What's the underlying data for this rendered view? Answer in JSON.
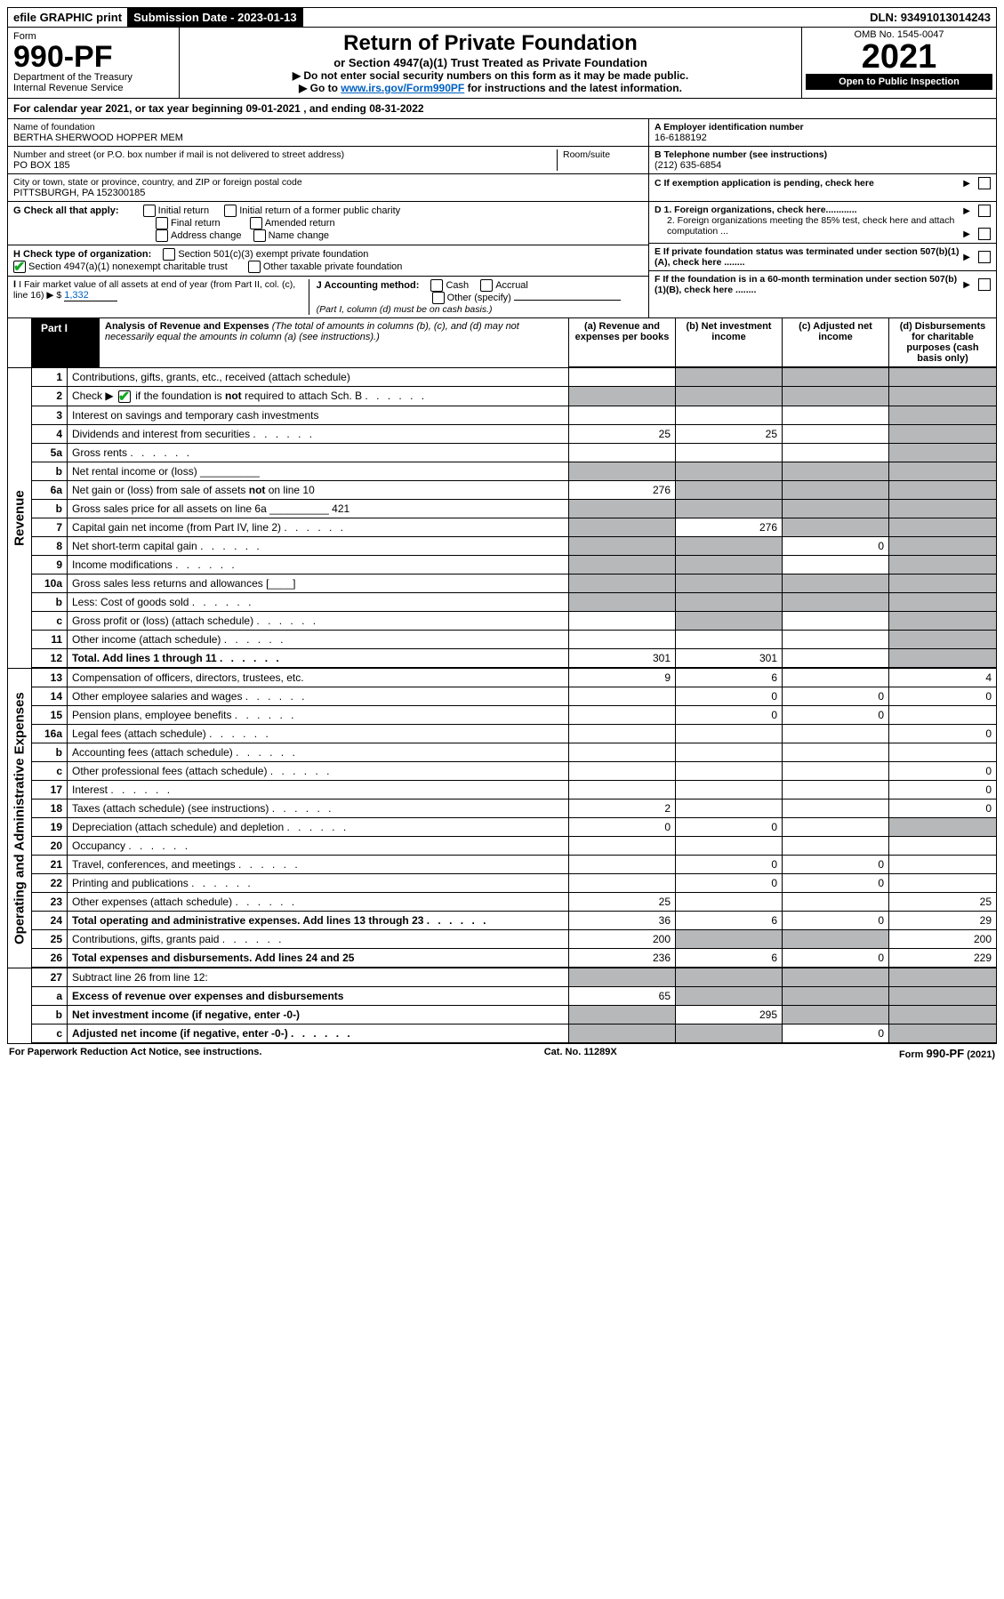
{
  "topbar": {
    "efile": "efile GRAPHIC print",
    "submission_label": "Submission Date - 2023-01-13",
    "dln": "DLN: 93491013014243"
  },
  "header": {
    "form_word": "Form",
    "form_no": "990-PF",
    "dept": "Department of the Treasury",
    "irs": "Internal Revenue Service",
    "title": "Return of Private Foundation",
    "subtitle": "or Section 4947(a)(1) Trust Treated as Private Foundation",
    "instr1": "▶ Do not enter social security numbers on this form as it may be made public.",
    "instr2_pre": "▶ Go to ",
    "instr2_link": "www.irs.gov/Form990PF",
    "instr2_post": " for instructions and the latest information.",
    "omb": "OMB No. 1545-0047",
    "year": "2021",
    "open_public": "Open to Public Inspection"
  },
  "period_line": {
    "pre": "For calendar year 2021, or tax year beginning ",
    "begin": "09-01-2021",
    "mid": " , and ending ",
    "end": "08-31-2022"
  },
  "foundation": {
    "name_label": "Name of foundation",
    "name": "BERTHA SHERWOOD HOPPER MEM",
    "addr_label": "Number and street (or P.O. box number if mail is not delivered to street address)",
    "addr": "PO BOX 185",
    "room_label": "Room/suite",
    "city_label": "City or town, state or province, country, and ZIP or foreign postal code",
    "city": "PITTSBURGH, PA  152300185"
  },
  "right_meta": {
    "a_label": "A Employer identification number",
    "a_value": "16-6188192",
    "b_label": "B Telephone number (see instructions)",
    "b_value": "(212) 635-6854",
    "c_label": "C If exemption application is pending, check here",
    "d1_label": "D 1. Foreign organizations, check here............",
    "d2_label": "2. Foreign organizations meeting the 85% test, check here and attach computation ...",
    "e_label": "E  If private foundation status was terminated under section 507(b)(1)(A), check here ........",
    "f_label": "F  If the foundation is in a 60-month termination under section 507(b)(1)(B), check here ........"
  },
  "g": {
    "label": "G Check all that apply:",
    "opts": [
      "Initial return",
      "Initial return of a former public charity",
      "Final return",
      "Amended return",
      "Address change",
      "Name change"
    ]
  },
  "h": {
    "label": "H Check type of organization:",
    "opt1": "Section 501(c)(3) exempt private foundation",
    "opt2": "Section 4947(a)(1) nonexempt charitable trust",
    "opt3": "Other taxable private foundation"
  },
  "i": {
    "label": "I Fair market value of all assets at end of year (from Part II, col. (c), line 16) ▶ $",
    "value": "1,332"
  },
  "j": {
    "label": "J Accounting method:",
    "opts": [
      "Cash",
      "Accrual",
      "Other (specify)"
    ],
    "note": "(Part I, column (d) must be on cash basis.)"
  },
  "part1": {
    "label": "Part I",
    "title": "Analysis of Revenue and Expenses",
    "paren": " (The total of amounts in columns (b), (c), and (d) may not necessarily equal the amounts in column (a) (see instructions).)",
    "col_a": "(a)  Revenue and expenses per books",
    "col_b": "(b)  Net investment income",
    "col_c": "(c)  Adjusted net income",
    "col_d": "(d)  Disbursements for charitable purposes (cash basis only)"
  },
  "side_labels": {
    "revenue": "Revenue",
    "opex": "Operating and Administrative Expenses"
  },
  "lines": [
    {
      "no": "1",
      "desc": "Contributions, gifts, grants, etc., received (attach schedule)",
      "a": "",
      "b": "gray",
      "c": "gray",
      "d": "gray"
    },
    {
      "no": "2",
      "desc": "Check ▶ ✔ if the foundation is not required to attach Sch. B",
      "dots": true,
      "a": "gray",
      "b": "gray",
      "c": "gray",
      "d": "gray"
    },
    {
      "no": "3",
      "desc": "Interest on savings and temporary cash investments",
      "a": "",
      "b": "",
      "c": "",
      "d": "gray"
    },
    {
      "no": "4",
      "desc": "Dividends and interest from securities",
      "dots": true,
      "a": "25",
      "b": "25",
      "c": "",
      "d": "gray"
    },
    {
      "no": "5a",
      "desc": "Gross rents",
      "dots": true,
      "a": "",
      "b": "",
      "c": "",
      "d": "gray"
    },
    {
      "no": "b",
      "desc": "Net rental income or (loss) __________",
      "a": "gray",
      "b": "gray",
      "c": "gray",
      "d": "gray"
    },
    {
      "no": "6a",
      "desc": "Net gain or (loss) from sale of assets not on line 10",
      "a": "276",
      "b": "gray",
      "c": "gray",
      "d": "gray"
    },
    {
      "no": "b",
      "desc": "Gross sales price for all assets on line 6a __________ 421",
      "a": "gray",
      "b": "gray",
      "c": "gray",
      "d": "gray"
    },
    {
      "no": "7",
      "desc": "Capital gain net income (from Part IV, line 2)",
      "dots": true,
      "a": "gray",
      "b": "276",
      "c": "gray",
      "d": "gray"
    },
    {
      "no": "8",
      "desc": "Net short-term capital gain",
      "dots": true,
      "a": "gray",
      "b": "gray",
      "c": "0",
      "d": "gray"
    },
    {
      "no": "9",
      "desc": "Income modifications",
      "dots": true,
      "a": "gray",
      "b": "gray",
      "c": "",
      "d": "gray"
    },
    {
      "no": "10a",
      "desc": "Gross sales less returns and allowances  [____]",
      "a": "gray",
      "b": "gray",
      "c": "gray",
      "d": "gray"
    },
    {
      "no": "b",
      "desc": "Less: Cost of goods sold",
      "dots": true,
      "endbox": true,
      "a": "gray",
      "b": "gray",
      "c": "gray",
      "d": "gray"
    },
    {
      "no": "c",
      "desc": "Gross profit or (loss) (attach schedule)",
      "dots": true,
      "a": "",
      "b": "gray",
      "c": "",
      "d": "gray"
    },
    {
      "no": "11",
      "desc": "Other income (attach schedule)",
      "dots": true,
      "a": "",
      "b": "",
      "c": "",
      "d": "gray"
    },
    {
      "no": "12",
      "desc": "Total. Add lines 1 through 11",
      "dots": true,
      "bold": true,
      "a": "301",
      "b": "301",
      "c": "",
      "d": "gray"
    },
    {
      "no": "13",
      "desc": "Compensation of officers, directors, trustees, etc.",
      "a": "9",
      "b": "6",
      "c": "",
      "d": "4"
    },
    {
      "no": "14",
      "desc": "Other employee salaries and wages",
      "dots": true,
      "a": "",
      "b": "0",
      "c": "0",
      "d": "0"
    },
    {
      "no": "15",
      "desc": "Pension plans, employee benefits",
      "dots": true,
      "a": "",
      "b": "0",
      "c": "0",
      "d": ""
    },
    {
      "no": "16a",
      "desc": "Legal fees (attach schedule)",
      "dots": true,
      "a": "",
      "b": "",
      "c": "",
      "d": "0"
    },
    {
      "no": "b",
      "desc": "Accounting fees (attach schedule)",
      "dots": true,
      "a": "",
      "b": "",
      "c": "",
      "d": ""
    },
    {
      "no": "c",
      "desc": "Other professional fees (attach schedule)",
      "dots": true,
      "a": "",
      "b": "",
      "c": "",
      "d": "0"
    },
    {
      "no": "17",
      "desc": "Interest",
      "dots": true,
      "a": "",
      "b": "",
      "c": "",
      "d": "0"
    },
    {
      "no": "18",
      "desc": "Taxes (attach schedule) (see instructions)",
      "dots": true,
      "a": "2",
      "b": "",
      "c": "",
      "d": "0"
    },
    {
      "no": "19",
      "desc": "Depreciation (attach schedule) and depletion",
      "dots": true,
      "a": "0",
      "b": "0",
      "c": "",
      "d": "gray"
    },
    {
      "no": "20",
      "desc": "Occupancy",
      "dots": true,
      "a": "",
      "b": "",
      "c": "",
      "d": ""
    },
    {
      "no": "21",
      "desc": "Travel, conferences, and meetings",
      "dots": true,
      "a": "",
      "b": "0",
      "c": "0",
      "d": ""
    },
    {
      "no": "22",
      "desc": "Printing and publications",
      "dots": true,
      "a": "",
      "b": "0",
      "c": "0",
      "d": ""
    },
    {
      "no": "23",
      "desc": "Other expenses (attach schedule)",
      "dots": true,
      "a": "25",
      "b": "",
      "c": "",
      "d": "25"
    },
    {
      "no": "24",
      "desc": "Total operating and administrative expenses. Add lines 13 through 23",
      "dots": true,
      "bold": true,
      "a": "36",
      "b": "6",
      "c": "0",
      "d": "29"
    },
    {
      "no": "25",
      "desc": "Contributions, gifts, grants paid",
      "dots": true,
      "a": "200",
      "b": "gray",
      "c": "gray",
      "d": "200"
    },
    {
      "no": "26",
      "desc": "Total expenses and disbursements. Add lines 24 and 25",
      "bold": true,
      "a": "236",
      "b": "6",
      "c": "0",
      "d": "229"
    },
    {
      "no": "27",
      "desc": "Subtract line 26 from line 12:",
      "a": "gray",
      "b": "gray",
      "c": "gray",
      "d": "gray"
    },
    {
      "no": "a",
      "desc": "Excess of revenue over expenses and disbursements",
      "bold": true,
      "a": "65",
      "b": "gray",
      "c": "gray",
      "d": "gray"
    },
    {
      "no": "b",
      "desc": "Net investment income (if negative, enter -0-)",
      "bold": true,
      "a": "gray",
      "b": "295",
      "c": "gray",
      "d": "gray"
    },
    {
      "no": "c",
      "desc": "Adjusted net income (if negative, enter -0-)",
      "bold": true,
      "dots": true,
      "a": "gray",
      "b": "gray",
      "c": "0",
      "d": "gray"
    }
  ],
  "footer": {
    "left": "For Paperwork Reduction Act Notice, see instructions.",
    "mid": "Cat. No. 11289X",
    "right": "Form 990-PF (2021)"
  },
  "colors": {
    "link": "#0060c0",
    "gray": "#b7b8ba",
    "check_green": "#11aa22"
  }
}
